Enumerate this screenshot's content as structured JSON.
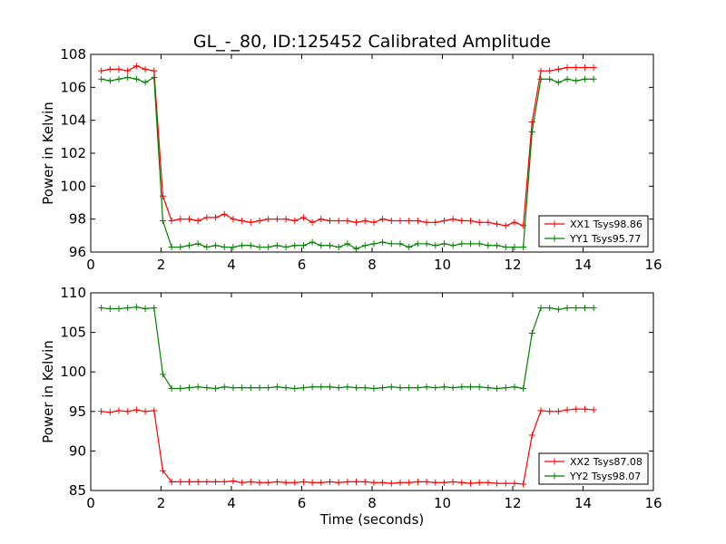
{
  "title": "GL_-_80, ID:125452 Calibrated Amplitude",
  "chart_data": [
    {
      "type": "line",
      "ylabel": "Power in Kelvin",
      "xlabel": "",
      "xlim": [
        0,
        16
      ],
      "ylim": [
        96,
        108
      ],
      "xticks": [
        0,
        2,
        4,
        6,
        8,
        10,
        12,
        14,
        16
      ],
      "yticks": [
        96,
        98,
        100,
        102,
        104,
        106,
        108
      ],
      "grid": false,
      "legend_position": "lower-right",
      "series": [
        {
          "name": "XX1 Tsys98.86",
          "color": "#ff0000",
          "x": [
            0.3,
            0.55,
            0.8,
            1.05,
            1.3,
            1.55,
            1.8,
            2.05,
            2.3,
            2.55,
            2.8,
            3.05,
            3.3,
            3.55,
            3.8,
            4.05,
            4.3,
            4.55,
            4.8,
            5.05,
            5.3,
            5.55,
            5.8,
            6.05,
            6.3,
            6.55,
            6.8,
            7.05,
            7.3,
            7.55,
            7.8,
            8.05,
            8.3,
            8.55,
            8.8,
            9.05,
            9.3,
            9.55,
            9.8,
            10.05,
            10.3,
            10.55,
            10.8,
            11.05,
            11.3,
            11.55,
            11.8,
            12.05,
            12.3,
            12.55,
            12.8,
            13.05,
            13.3,
            13.55,
            13.8,
            14.05,
            14.3
          ],
          "y": [
            107.0,
            107.1,
            107.1,
            107.0,
            107.3,
            107.1,
            107.0,
            99.4,
            97.9,
            98.0,
            98.0,
            97.9,
            98.1,
            98.1,
            98.3,
            98.0,
            97.9,
            97.8,
            97.9,
            98.0,
            98.0,
            98.0,
            97.9,
            98.1,
            97.8,
            98.0,
            97.9,
            97.9,
            97.9,
            97.8,
            97.9,
            97.8,
            98.0,
            97.9,
            97.9,
            97.9,
            97.9,
            97.8,
            97.8,
            97.9,
            98.0,
            97.9,
            97.9,
            97.8,
            97.8,
            97.7,
            97.6,
            97.8,
            97.6,
            103.9,
            107.0,
            107.0,
            107.1,
            107.2,
            107.2,
            107.2,
            107.2
          ]
        },
        {
          "name": "YY1 Tsys95.77",
          "color": "#008000",
          "x": [
            0.3,
            0.55,
            0.8,
            1.05,
            1.3,
            1.55,
            1.8,
            2.05,
            2.3,
            2.55,
            2.8,
            3.05,
            3.3,
            3.55,
            3.8,
            4.05,
            4.3,
            4.55,
            4.8,
            5.05,
            5.3,
            5.55,
            5.8,
            6.05,
            6.3,
            6.55,
            6.8,
            7.05,
            7.3,
            7.55,
            7.8,
            8.05,
            8.3,
            8.55,
            8.8,
            9.05,
            9.3,
            9.55,
            9.8,
            10.05,
            10.3,
            10.55,
            10.8,
            11.05,
            11.3,
            11.55,
            11.8,
            12.05,
            12.3,
            12.55,
            12.8,
            13.05,
            13.3,
            13.55,
            13.8,
            14.05,
            14.3
          ],
          "y": [
            106.5,
            106.4,
            106.5,
            106.6,
            106.5,
            106.3,
            106.6,
            97.9,
            96.3,
            96.3,
            96.4,
            96.5,
            96.3,
            96.4,
            96.3,
            96.3,
            96.4,
            96.4,
            96.3,
            96.3,
            96.4,
            96.3,
            96.4,
            96.4,
            96.6,
            96.4,
            96.4,
            96.3,
            96.5,
            96.2,
            96.4,
            96.5,
            96.6,
            96.5,
            96.5,
            96.3,
            96.5,
            96.5,
            96.4,
            96.5,
            96.4,
            96.5,
            96.5,
            96.5,
            96.4,
            96.4,
            96.3,
            96.3,
            96.3,
            103.3,
            106.5,
            106.5,
            106.3,
            106.5,
            106.4,
            106.5,
            106.5
          ]
        }
      ]
    },
    {
      "type": "line",
      "ylabel": "Power in Kelvin",
      "xlabel": "Time (seconds)",
      "xlim": [
        0,
        16
      ],
      "ylim": [
        85,
        110
      ],
      "xticks": [
        0,
        2,
        4,
        6,
        8,
        10,
        12,
        14,
        16
      ],
      "yticks": [
        85,
        90,
        95,
        100,
        105,
        110
      ],
      "grid": false,
      "legend_position": "lower-right",
      "series": [
        {
          "name": "XX2 Tsys87.08",
          "color": "#ff0000",
          "x": [
            0.3,
            0.55,
            0.8,
            1.05,
            1.3,
            1.55,
            1.8,
            2.05,
            2.3,
            2.55,
            2.8,
            3.05,
            3.3,
            3.55,
            3.8,
            4.05,
            4.3,
            4.55,
            4.8,
            5.05,
            5.3,
            5.55,
            5.8,
            6.05,
            6.3,
            6.55,
            6.8,
            7.05,
            7.3,
            7.55,
            7.8,
            8.05,
            8.3,
            8.55,
            8.8,
            9.05,
            9.3,
            9.55,
            9.8,
            10.05,
            10.3,
            10.55,
            10.8,
            11.05,
            11.3,
            11.55,
            11.8,
            12.05,
            12.3,
            12.55,
            12.8,
            13.05,
            13.3,
            13.55,
            13.8,
            14.05,
            14.3
          ],
          "y": [
            95.0,
            94.9,
            95.1,
            95.0,
            95.2,
            95.0,
            95.1,
            87.5,
            86.1,
            86.1,
            86.1,
            86.1,
            86.1,
            86.1,
            86.1,
            86.2,
            86.0,
            86.1,
            86.0,
            86.0,
            86.1,
            86.0,
            86.0,
            86.1,
            86.0,
            86.0,
            86.1,
            86.0,
            86.1,
            86.1,
            86.1,
            86.0,
            86.0,
            85.9,
            86.0,
            86.0,
            86.1,
            86.1,
            86.0,
            86.0,
            86.1,
            86.0,
            85.9,
            86.0,
            86.0,
            85.9,
            85.9,
            85.9,
            85.8,
            92.0,
            95.1,
            95.0,
            95.0,
            95.2,
            95.3,
            95.3,
            95.2
          ]
        },
        {
          "name": "YY2 Tsys98.07",
          "color": "#008000",
          "x": [
            0.3,
            0.55,
            0.8,
            1.05,
            1.3,
            1.55,
            1.8,
            2.05,
            2.3,
            2.55,
            2.8,
            3.05,
            3.3,
            3.55,
            3.8,
            4.05,
            4.3,
            4.55,
            4.8,
            5.05,
            5.3,
            5.55,
            5.8,
            6.05,
            6.3,
            6.55,
            6.8,
            7.05,
            7.3,
            7.55,
            7.8,
            8.05,
            8.3,
            8.55,
            8.8,
            9.05,
            9.3,
            9.55,
            9.8,
            10.05,
            10.3,
            10.55,
            10.8,
            11.05,
            11.3,
            11.55,
            11.8,
            12.05,
            12.3,
            12.55,
            12.8,
            13.05,
            13.3,
            13.55,
            13.8,
            14.05,
            14.3
          ],
          "y": [
            108.1,
            108.0,
            108.0,
            108.1,
            108.2,
            108.0,
            108.1,
            99.7,
            97.9,
            97.9,
            98.0,
            98.1,
            98.0,
            97.9,
            98.1,
            98.0,
            98.0,
            98.0,
            98.0,
            98.0,
            98.1,
            98.0,
            97.9,
            98.0,
            98.1,
            98.1,
            98.1,
            98.0,
            98.1,
            98.0,
            98.0,
            97.9,
            98.0,
            98.1,
            98.0,
            98.0,
            98.0,
            98.1,
            98.0,
            98.1,
            98.0,
            98.1,
            98.1,
            98.1,
            98.0,
            97.9,
            98.0,
            98.1,
            97.9,
            104.9,
            108.1,
            108.1,
            107.9,
            108.1,
            108.1,
            108.1,
            108.1
          ]
        }
      ]
    }
  ]
}
